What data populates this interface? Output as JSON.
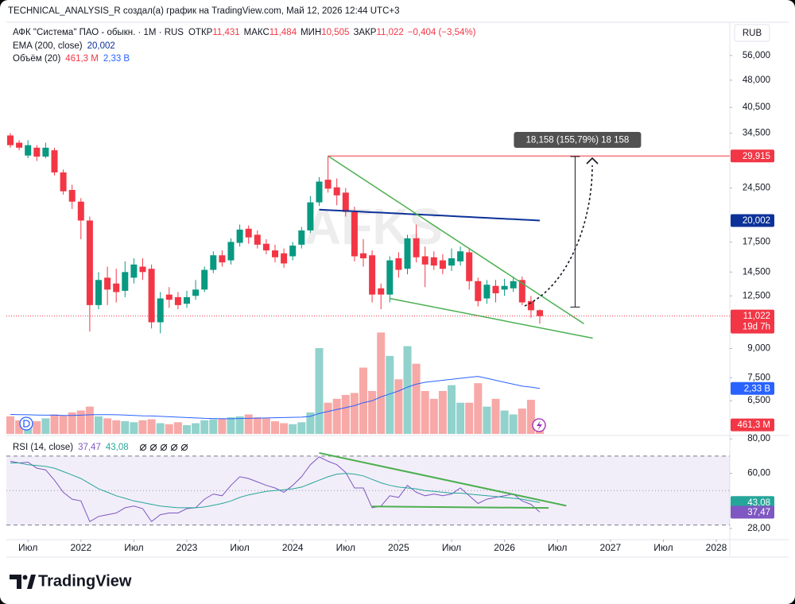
{
  "header": {
    "text": "TECHNICAL_ANALYSIS_R создал(а) график на TradingView.com, Май 12, 2026 12:44 UTC+3"
  },
  "footer": {
    "brand": "TradingView"
  },
  "chart_data": [
    {
      "type": "candlestick",
      "name": "АФК \"Система\" ПАО - обыкн. · 1M · RUS",
      "currency": "RUB",
      "watermark": "AFKS",
      "legend": {
        "open_label": "ОТКР",
        "open": "11,431",
        "high_label": "МАКС",
        "high": "11,484",
        "low_label": "МИН",
        "low": "10,505",
        "close_label": "ЗАКР",
        "close": "11,022",
        "change": "−0,404 (−3,54%)"
      },
      "x": [
        "2021-05",
        "2021-06",
        "2021-07",
        "2021-08",
        "2021-09",
        "2021-10",
        "2021-11",
        "2021-12",
        "2022-01",
        "2022-02",
        "2022-03",
        "2022-04",
        "2022-05",
        "2022-06",
        "2022-07",
        "2022-08",
        "2022-09",
        "2022-10",
        "2022-11",
        "2022-12",
        "2023-01",
        "2023-02",
        "2023-03",
        "2023-04",
        "2023-05",
        "2023-06",
        "2023-07",
        "2023-08",
        "2023-09",
        "2023-10",
        "2023-11",
        "2023-12",
        "2024-01",
        "2024-02",
        "2024-03",
        "2024-04",
        "2024-05",
        "2024-06",
        "2024-07",
        "2024-08",
        "2024-09",
        "2024-10",
        "2024-11",
        "2024-12",
        "2025-01",
        "2025-02",
        "2025-03",
        "2025-04",
        "2025-05",
        "2025-06",
        "2025-07",
        "2025-08",
        "2025-09",
        "2025-10",
        "2025-11",
        "2025-12",
        "2026-01",
        "2026-02",
        "2026-03",
        "2026-04",
        "2026-05"
      ],
      "open": [
        34,
        32.5,
        30,
        31.5,
        29.8,
        31,
        27,
        24.2,
        22.5,
        20,
        11.8,
        14,
        13.5,
        12.9,
        14,
        15,
        14.8,
        10.6,
        12.6,
        12.4,
        11.9,
        12.5,
        13,
        14.7,
        16.1,
        15.6,
        17.4,
        19,
        18.3,
        17.3,
        16.6,
        16.3,
        16,
        17.2,
        18.8,
        22.4,
        25.8,
        24.6,
        23.8,
        21.1,
        16.3,
        16.1,
        13.1,
        12.6,
        15.8,
        14.8,
        17.9,
        16,
        15.9,
        15.6,
        15.1,
        15.5,
        16.4,
        13.7,
        12.3,
        13.3,
        13,
        13.1,
        13.8,
        12.1,
        11.431
      ],
      "high": [
        34.5,
        33,
        33,
        32,
        32.5,
        31.5,
        27.5,
        25,
        23,
        20.5,
        14.5,
        15,
        14.8,
        15.5,
        15.8,
        15.8,
        15.2,
        12.8,
        13.2,
        12.8,
        12.9,
        13.8,
        15,
        16.5,
        16.6,
        17.9,
        19.5,
        19.4,
        18.8,
        17.8,
        17.2,
        16.8,
        17.5,
        19.2,
        23.3,
        26.2,
        29.915,
        26,
        24.5,
        21.8,
        17.8,
        16.6,
        13.5,
        16,
        16.4,
        18.3,
        19.5,
        17,
        16.5,
        16.2,
        16.8,
        17,
        16.8,
        14,
        13.8,
        13.8,
        13.9,
        14.1,
        14.1,
        12.5,
        11.484
      ],
      "low": [
        31.5,
        31,
        29.5,
        29,
        29.5,
        26.5,
        23.5,
        21.5,
        17.8,
        10,
        11.5,
        11.8,
        12,
        12.4,
        13.5,
        13.8,
        10.2,
        9.9,
        11.6,
        11.5,
        11.6,
        12.2,
        12.8,
        14.4,
        15,
        15.2,
        17,
        17.3,
        16.8,
        16.2,
        15.4,
        14.9,
        15.6,
        16.8,
        18.5,
        21.9,
        23.8,
        22,
        20.5,
        15.5,
        15,
        12,
        11.5,
        12,
        14,
        14.3,
        15.4,
        13.2,
        14.7,
        14.3,
        14.6,
        15.1,
        13,
        11.7,
        11.9,
        12,
        12.5,
        12.8,
        11.8,
        10.9,
        10.505
      ],
      "close": [
        32,
        31.5,
        32,
        29.8,
        31.5,
        27,
        24,
        22.5,
        20,
        11.8,
        13.8,
        13,
        12.8,
        14.5,
        15.2,
        14.5,
        10.6,
        12.3,
        12.2,
        11.8,
        12.4,
        13,
        14.7,
        16.1,
        15.4,
        17.5,
        18.9,
        18,
        17.2,
        16.6,
        15.9,
        15.3,
        17.1,
        18.8,
        22.4,
        25.5,
        24.4,
        23.4,
        21.1,
        16,
        15.8,
        12.6,
        12.6,
        15.6,
        14.7,
        17.9,
        15.9,
        15.2,
        15.1,
        14.8,
        15.8,
        16.5,
        13.7,
        12.1,
        13.4,
        12.7,
        13.3,
        13.7,
        12,
        11.426,
        11.022
      ],
      "up_color": "#089981",
      "down_color": "#f23645",
      "log_scale": true,
      "ylim": [
        5.23,
        68.9
      ],
      "yticks": [
        {
          "value": 56,
          "label": "56,000"
        },
        {
          "value": 48,
          "label": "48,000"
        },
        {
          "value": 40.5,
          "label": "40,500"
        },
        {
          "value": 34.5,
          "label": "34,500"
        },
        {
          "value": 24.5,
          "label": "24,500"
        },
        {
          "value": 17.5,
          "label": "17,500"
        },
        {
          "value": 14.5,
          "label": "14,500"
        },
        {
          "value": 12.5,
          "label": "12,500"
        },
        {
          "value": 9,
          "label": "9,000"
        },
        {
          "value": 7.5,
          "label": "7,500"
        },
        {
          "value": 6.5,
          "label": "6,500"
        }
      ],
      "xticks": [
        {
          "value": "2021-07",
          "label": "Июл"
        },
        {
          "value": "2022-01",
          "label": "2022"
        },
        {
          "value": "2022-07",
          "label": "Июл"
        },
        {
          "value": "2023-01",
          "label": "2023"
        },
        {
          "value": "2023-07",
          "label": "Июл"
        },
        {
          "value": "2024-01",
          "label": "2024"
        },
        {
          "value": "2024-07",
          "label": "Июл"
        },
        {
          "value": "2025-01",
          "label": "2025"
        },
        {
          "value": "2025-07",
          "label": "Июл"
        },
        {
          "value": "2026-01",
          "label": "2026"
        },
        {
          "value": "2026-07",
          "label": "Июл"
        },
        {
          "value": "2027-01",
          "label": "2027"
        },
        {
          "value": "2027-07",
          "label": "Июл"
        },
        {
          "value": "2028-01",
          "label": "2028"
        }
      ],
      "series": [
        {
          "name": "EMA (200, close)",
          "color": "#0c3299",
          "last_label": "20,002",
          "values": [
            null,
            null,
            null,
            null,
            null,
            null,
            null,
            null,
            null,
            null,
            null,
            null,
            null,
            null,
            null,
            null,
            null,
            null,
            null,
            null,
            null,
            null,
            null,
            null,
            null,
            null,
            null,
            null,
            null,
            null,
            null,
            null,
            null,
            null,
            null,
            21.4,
            21.34,
            21.29,
            21.23,
            21.18,
            21.12,
            21.06,
            21.01,
            20.95,
            20.9,
            20.84,
            20.78,
            20.73,
            20.67,
            20.62,
            20.56,
            20.5,
            20.45,
            20.39,
            20.34,
            20.28,
            20.22,
            20.17,
            20.11,
            20.06,
            20.002
          ]
        }
      ],
      "price_tag": {
        "value": 11.022,
        "label": "11,022",
        "countdown": "19d 7h",
        "color": "#f23645"
      },
      "level": {
        "value": 29.915,
        "label": "29,915",
        "start": "2024-05",
        "color": "#f23645"
      },
      "measure": {
        "from": 11.656,
        "to": 29.814,
        "at": "2026-09",
        "label": "18,158 (155,79%) 18 158"
      },
      "trendline_color": "#4caf50",
      "trendlines": [
        {
          "x": [
            "2024-05",
            "2026-10"
          ],
          "y": [
            29.915,
            10.5
          ]
        },
        {
          "x": [
            "2024-12",
            "2026-11"
          ],
          "y": [
            12.3,
            9.6
          ]
        }
      ]
    },
    {
      "type": "bar",
      "title": "Объём (20)",
      "last_label": "461,3 M",
      "up_color": "#92d2cc",
      "down_color": "#f7a9a7",
      "ylim": [
        0,
        5500
      ],
      "values": [
        900,
        700,
        600,
        650,
        800,
        1000,
        950,
        1100,
        1200,
        1400,
        900,
        800,
        700,
        650,
        600,
        700,
        750,
        550,
        500,
        600,
        450,
        550,
        700,
        750,
        800,
        850,
        900,
        1000,
        850,
        800,
        650,
        550,
        500,
        600,
        1100,
        4400,
        1600,
        1800,
        2000,
        2100,
        3400,
        2200,
        5200,
        4000,
        2800,
        4500,
        3600,
        2200,
        1800,
        2200,
        2500,
        1600,
        1600,
        2600,
        1400,
        1800,
        1200,
        1000,
        1300,
        1750,
        461.3
      ],
      "series": [
        {
          "color": "#2962ff",
          "last_label": "2,33 B",
          "values": [
            1000,
            990,
            980,
            970,
            960,
            960,
            950,
            950,
            960,
            980,
            990,
            990,
            980,
            970,
            950,
            930,
            920,
            900,
            880,
            860,
            840,
            820,
            800,
            790,
            780,
            780,
            790,
            800,
            810,
            820,
            830,
            840,
            850,
            860,
            900,
            1050,
            1150,
            1250,
            1350,
            1450,
            1600,
            1700,
            1900,
            2050,
            2200,
            2400,
            2550,
            2650,
            2700,
            2750,
            2800,
            2850,
            2900,
            2950,
            2850,
            2750,
            2650,
            2550,
            2450,
            2400,
            2330
          ]
        }
      ]
    },
    {
      "type": "line",
      "title": "RSI (14, close)",
      "ylim": [
        22,
        81
      ],
      "yticks": [
        {
          "value": 80,
          "label": "80,00"
        },
        {
          "value": 60,
          "label": "60,00"
        },
        {
          "value": 28,
          "label": "28,00"
        }
      ],
      "bands": [
        70,
        30
      ],
      "midline": 50,
      "band_fill": "#7e57c2",
      "series": [
        {
          "color": "#7e57c2",
          "last_label": "37,47",
          "values": [
            67,
            66,
            66.5,
            63,
            62,
            56,
            49,
            45,
            44,
            32,
            35,
            36,
            37,
            40,
            41,
            39.5,
            32,
            36,
            37,
            37,
            39.5,
            40,
            45,
            48,
            47,
            53,
            58,
            57,
            55,
            53,
            51.5,
            49,
            53,
            58,
            65,
            69.5,
            67,
            65,
            60.5,
            51.5,
            51.5,
            40,
            41,
            47,
            46,
            53,
            49,
            47,
            48,
            47,
            48,
            51.5,
            47,
            42.5,
            45,
            46,
            47,
            48,
            44,
            42,
            37.47
          ]
        },
        {
          "color": "#26a69a",
          "last_label": "43,08",
          "values": [
            66,
            66,
            65,
            64.5,
            64,
            63,
            61,
            59,
            57,
            54,
            51,
            49,
            47,
            45.5,
            44,
            43,
            42,
            41,
            40.5,
            40,
            40,
            40,
            40.5,
            41.5,
            42.5,
            44,
            46,
            47.5,
            48.5,
            49.5,
            50,
            50.5,
            51,
            52,
            54,
            56,
            58,
            59.5,
            60,
            59.5,
            58.5,
            56.5,
            54.5,
            53,
            52,
            51.5,
            51,
            50,
            49.5,
            49,
            48.5,
            48.5,
            48,
            47.5,
            47,
            46.5,
            46,
            45.5,
            45,
            44,
            43.08
          ]
        }
      ],
      "trendline_color": "#4caf50",
      "trendlines": [
        {
          "x": [
            "2024-04",
            "2026-08"
          ],
          "y": [
            71.8,
            41.2
          ]
        },
        {
          "x": [
            "2024-10",
            "2026-06"
          ],
          "y": [
            40.8,
            39.9
          ]
        }
      ]
    }
  ]
}
